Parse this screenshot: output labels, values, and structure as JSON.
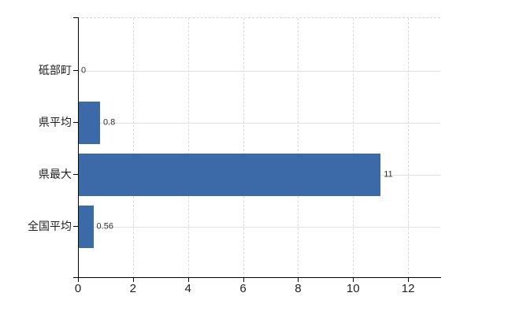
{
  "chart_data": {
    "type": "bar",
    "orientation": "horizontal",
    "title": "",
    "xlabel": "",
    "ylabel": "",
    "categories": [
      "砥部町",
      "県平均",
      "県最大",
      "全国平均"
    ],
    "values": [
      0,
      0.8,
      11,
      0.56
    ],
    "value_labels": [
      "0",
      "0.8",
      "11",
      "0.56"
    ],
    "x_tick_labels": [
      "0",
      "2",
      "4",
      "6",
      "8",
      "10",
      "12"
    ],
    "x_tick_values": [
      0,
      2,
      4,
      6,
      8,
      10,
      12
    ],
    "xlim": [
      0,
      13.17
    ],
    "grid": "on",
    "legend": "none",
    "colors": {
      "bar": "#3c69a8",
      "h_gridline": "#dde3dd",
      "v_gridline": "#d9d9dc",
      "plot_top_border": "#d6d6d6",
      "axis": "#000000",
      "tick_label": "#1f1f1f",
      "value_label": "#333333"
    }
  }
}
